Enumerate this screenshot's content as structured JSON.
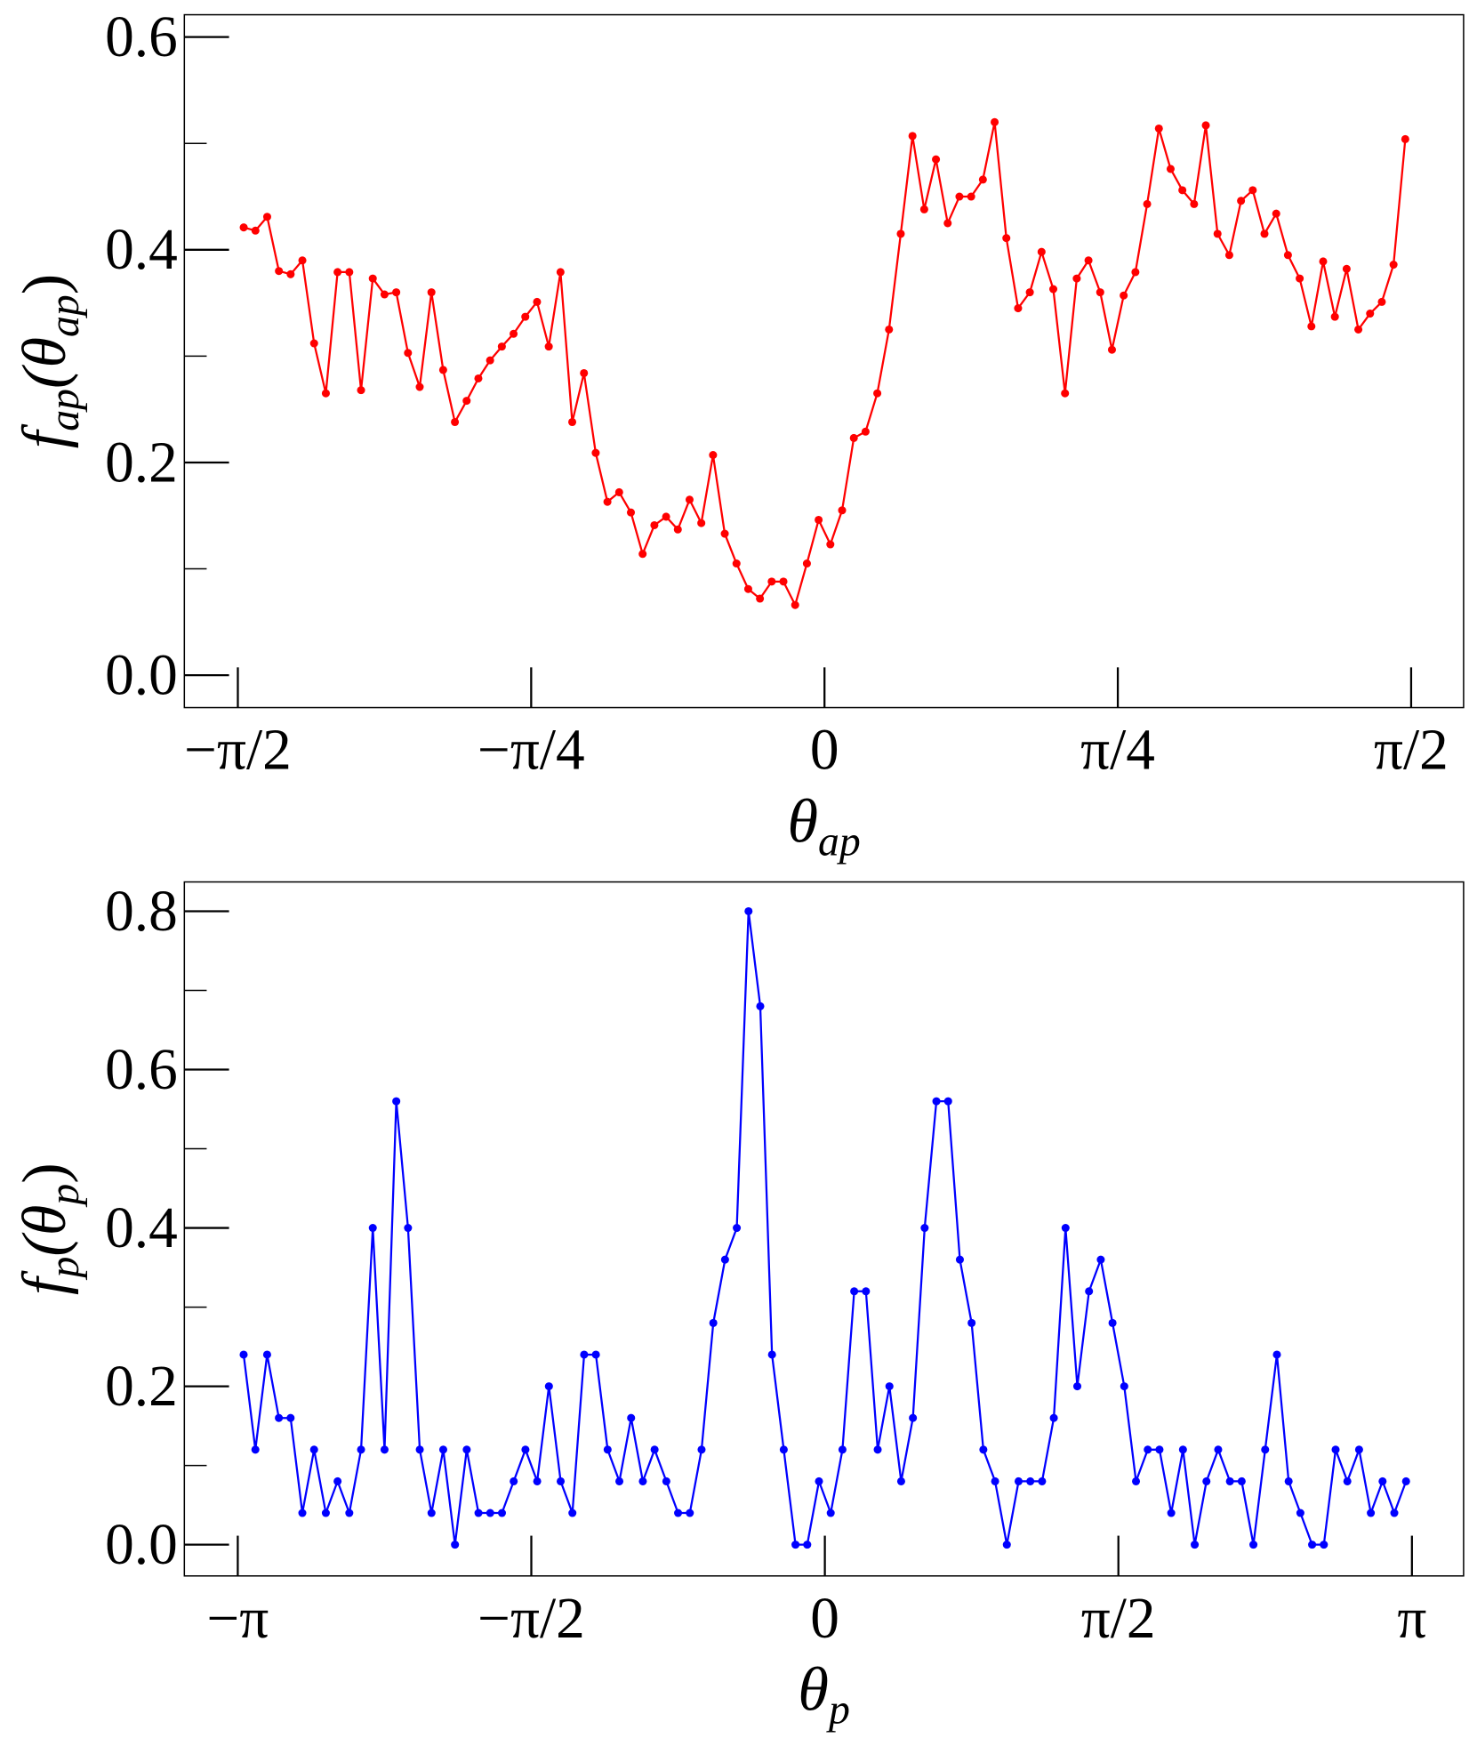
{
  "chart_data": [
    {
      "type": "line",
      "xlabel_parts": [
        "θ",
        "ap"
      ],
      "ylabel_parts": [
        "f",
        "ap",
        "(θ",
        "ap",
        ")"
      ],
      "xlim": [
        -0.5456,
        0.5447
      ],
      "xticks": [
        {
          "value": -0.5,
          "label": "−π/2"
        },
        {
          "value": -0.25,
          "label": "−π/4"
        },
        0,
        {
          "value": 0.25,
          "label": "π/4"
        },
        {
          "value": 0.5,
          "label": "π/2"
        }
      ],
      "ylim": [
        -0.0305,
        0.621
      ],
      "yticks": [
        {
          "value": 0,
          "label": "0.0"
        },
        0.2,
        0.4,
        0.6
      ],
      "yminor_ticks": [
        0.1,
        0.3,
        0.5
      ],
      "series": [
        {
          "color": "#ff0000",
          "x": [
            -0.495,
            -0.485,
            -0.475,
            -0.465,
            -0.455,
            -0.445,
            -0.435,
            -0.425,
            -0.415,
            -0.405,
            -0.395,
            -0.385,
            -0.375,
            -0.365,
            -0.355,
            -0.345,
            -0.335,
            -0.325,
            -0.315,
            -0.305,
            -0.295,
            -0.285,
            -0.275,
            -0.265,
            -0.255,
            -0.245,
            -0.235,
            -0.225,
            -0.215,
            -0.205,
            -0.195,
            -0.185,
            -0.175,
            -0.165,
            -0.155,
            -0.145,
            -0.135,
            -0.125,
            -0.115,
            -0.105,
            -0.095,
            -0.085,
            -0.075,
            -0.065,
            -0.055,
            -0.045,
            -0.035,
            -0.025,
            -0.015,
            -0.005,
            0.005,
            0.015,
            0.025,
            0.035,
            0.045,
            0.055,
            0.065,
            0.075,
            0.085,
            0.095,
            0.105,
            0.115,
            0.125,
            0.135,
            0.145,
            0.155,
            0.165,
            0.175,
            0.185,
            0.195,
            0.205,
            0.215,
            0.225,
            0.235,
            0.245,
            0.255,
            0.265,
            0.275,
            0.285,
            0.295,
            0.305,
            0.315,
            0.325,
            0.335,
            0.345,
            0.355,
            0.365,
            0.375,
            0.385,
            0.395,
            0.405,
            0.415,
            0.425,
            0.435,
            0.445,
            0.455,
            0.465,
            0.475,
            0.485,
            0.495
          ],
          "values": [
            0.421,
            0.418,
            0.431,
            0.38,
            0.377,
            0.39,
            0.312,
            0.265,
            0.379,
            0.379,
            0.268,
            0.373,
            0.358,
            0.36,
            0.303,
            0.271,
            0.36,
            0.287,
            0.238,
            0.258,
            0.279,
            0.296,
            0.309,
            0.321,
            0.337,
            0.351,
            0.309,
            0.379,
            0.238,
            0.284,
            0.209,
            0.163,
            0.172,
            0.153,
            0.114,
            0.141,
            0.149,
            0.137,
            0.165,
            0.143,
            0.207,
            0.133,
            0.105,
            0.081,
            0.072,
            0.088,
            0.088,
            0.066,
            0.105,
            0.146,
            0.123,
            0.155,
            0.223,
            0.229,
            0.265,
            0.325,
            0.415,
            0.507,
            0.438,
            0.485,
            0.425,
            0.45,
            0.45,
            0.466,
            0.52,
            0.411,
            0.345,
            0.36,
            0.398,
            0.363,
            0.265,
            0.373,
            0.39,
            0.36,
            0.306,
            0.357,
            0.379,
            0.443,
            0.514,
            0.476,
            0.456,
            0.443,
            0.517,
            0.415,
            0.395,
            0.446,
            0.456,
            0.415,
            0.434,
            0.395,
            0.373,
            0.328,
            0.389,
            0.337,
            0.382,
            0.325,
            0.34,
            0.351,
            0.386,
            0.504
          ]
        }
      ]
    },
    {
      "type": "line",
      "xlabel_parts": [
        "θ",
        "p"
      ],
      "ylabel_parts": [
        "f",
        "p",
        "(θ",
        "p",
        ")"
      ],
      "xlim": [
        -1.091,
        1.088
      ],
      "xticks": [
        {
          "value": -1,
          "label": "−π"
        },
        {
          "value": -0.5,
          "label": "−π/2"
        },
        0,
        {
          "value": 0.5,
          "label": "π/2"
        },
        {
          "value": 1,
          "label": "π"
        }
      ],
      "ylim": [
        -0.0395,
        0.837
      ],
      "yticks": [
        {
          "value": 0,
          "label": "0.0"
        },
        0.2,
        0.4,
        0.6,
        0.8
      ],
      "yminor_ticks": [
        0.1,
        0.3,
        0.5,
        0.7
      ],
      "series": [
        {
          "color": "#0000ff",
          "x": [
            -0.99,
            -0.97,
            -0.95,
            -0.93,
            -0.91,
            -0.89,
            -0.87,
            -0.85,
            -0.83,
            -0.81,
            -0.79,
            -0.77,
            -0.75,
            -0.73,
            -0.71,
            -0.69,
            -0.67,
            -0.65,
            -0.63,
            -0.61,
            -0.59,
            -0.57,
            -0.55,
            -0.53,
            -0.51,
            -0.49,
            -0.47,
            -0.45,
            -0.43,
            -0.41,
            -0.39,
            -0.37,
            -0.35,
            -0.33,
            -0.31,
            -0.29,
            -0.27,
            -0.25,
            -0.23,
            -0.21,
            -0.19,
            -0.17,
            -0.15,
            -0.13,
            -0.11,
            -0.09,
            -0.07,
            -0.05,
            -0.03,
            -0.01,
            0.01,
            0.03,
            0.05,
            0.07,
            0.09,
            0.11,
            0.13,
            0.15,
            0.17,
            0.19,
            0.21,
            0.23,
            0.25,
            0.27,
            0.29,
            0.31,
            0.33,
            0.35,
            0.37,
            0.39,
            0.41,
            0.43,
            0.45,
            0.47,
            0.49,
            0.51,
            0.53,
            0.55,
            0.57,
            0.59,
            0.61,
            0.63,
            0.65,
            0.67,
            0.69,
            0.71,
            0.73,
            0.75,
            0.77,
            0.79,
            0.81,
            0.83,
            0.85,
            0.87,
            0.89,
            0.91,
            0.93,
            0.95,
            0.97,
            0.99
          ],
          "values": [
            0.24,
            0.12,
            0.24,
            0.16,
            0.16,
            0.04,
            0.12,
            0.04,
            0.08,
            0.04,
            0.12,
            0.4,
            0.12,
            0.56,
            0.4,
            0.12,
            0.04,
            0.12,
            0.0,
            0.12,
            0.04,
            0.04,
            0.04,
            0.08,
            0.12,
            0.08,
            0.2,
            0.08,
            0.04,
            0.24,
            0.24,
            0.12,
            0.08,
            0.16,
            0.08,
            0.12,
            0.08,
            0.04,
            0.04,
            0.12,
            0.28,
            0.36,
            0.4,
            0.8,
            0.68,
            0.24,
            0.12,
            0.0,
            0.0,
            0.08,
            0.04,
            0.12,
            0.32,
            0.32,
            0.12,
            0.2,
            0.08,
            0.16,
            0.4,
            0.56,
            0.56,
            0.36,
            0.28,
            0.12,
            0.08,
            0.0,
            0.08,
            0.08,
            0.08,
            0.16,
            0.4,
            0.2,
            0.32,
            0.36,
            0.28,
            0.2,
            0.08,
            0.12,
            0.12,
            0.04,
            0.12,
            0.0,
            0.08,
            0.12,
            0.08,
            0.08,
            0.0,
            0.12,
            0.24,
            0.08,
            0.04,
            0.0,
            0.0,
            0.12,
            0.08,
            0.12,
            0.04,
            0.08,
            0.04,
            0.08
          ]
        }
      ]
    }
  ]
}
